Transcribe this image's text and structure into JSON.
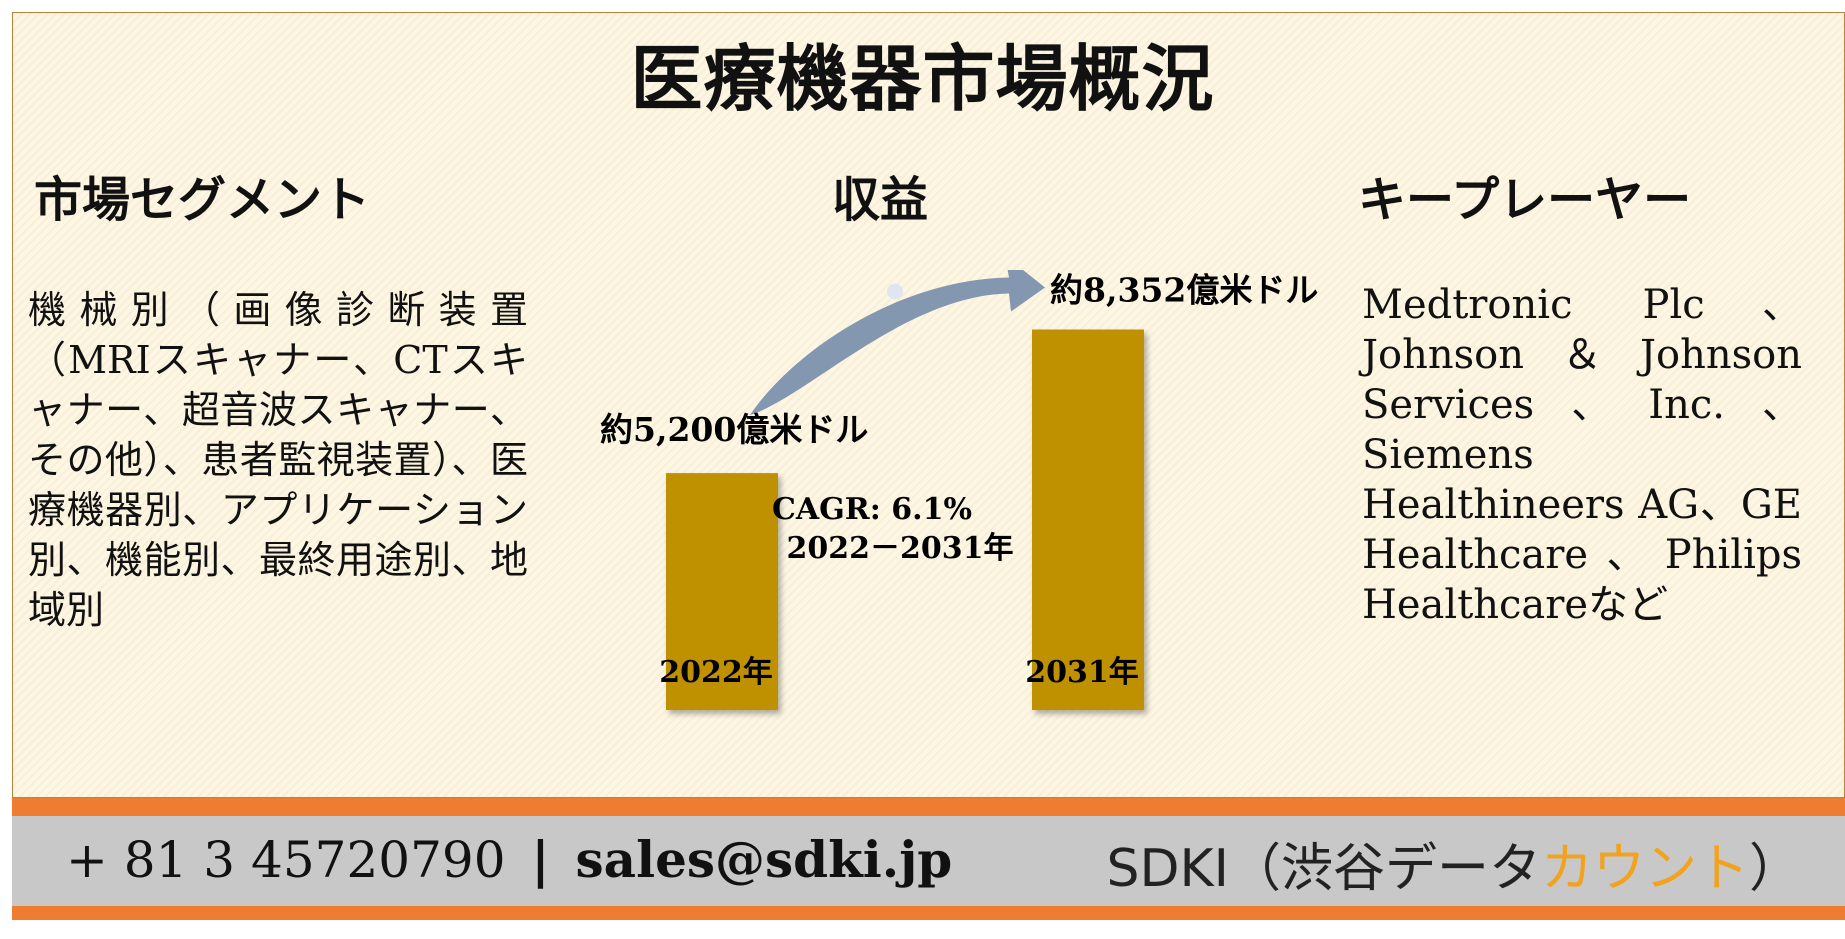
{
  "title": "医療機器市場概況",
  "segments": {
    "heading": "市場セグメント",
    "text": "機械別（画像診断装置（MRIスキャナー、CTスキャナー、超音波スキャナー、その他）、患者監視装置）、医療機器別、アプリケーション別、機能別、最終用途別、地域別"
  },
  "revenue": {
    "heading": "収益"
  },
  "players": {
    "heading": "キープレーヤー",
    "text": "Medtronic Plc、Johnson＆Johnson Services、Inc.、Siemens Healthineers AG、GE Healthcare、Philips Healthcareなど"
  },
  "chart_data": {
    "type": "bar",
    "categories": [
      "2022年",
      "2031年"
    ],
    "values": [
      5200,
      8352
    ],
    "data_labels": [
      "約5,200億米ドル",
      "約8,352億米ドル"
    ],
    "unit": "億米ドル",
    "annotation": {
      "line1": "CAGR: 6.1%",
      "line2": "2022－2031年"
    },
    "bar_color": "#bf9000",
    "arrow_color": "#8497b0",
    "ylim": [
      0,
      9000
    ]
  },
  "footer": {
    "phone": "+ 81 3 45720790",
    "separator": "|",
    "email": "sales@sdki.jp",
    "brand_prefix": "SDKI（渋谷データ",
    "brand_accent": "カウント",
    "brand_suffix": "）",
    "accent_color": "#f2a21c"
  }
}
